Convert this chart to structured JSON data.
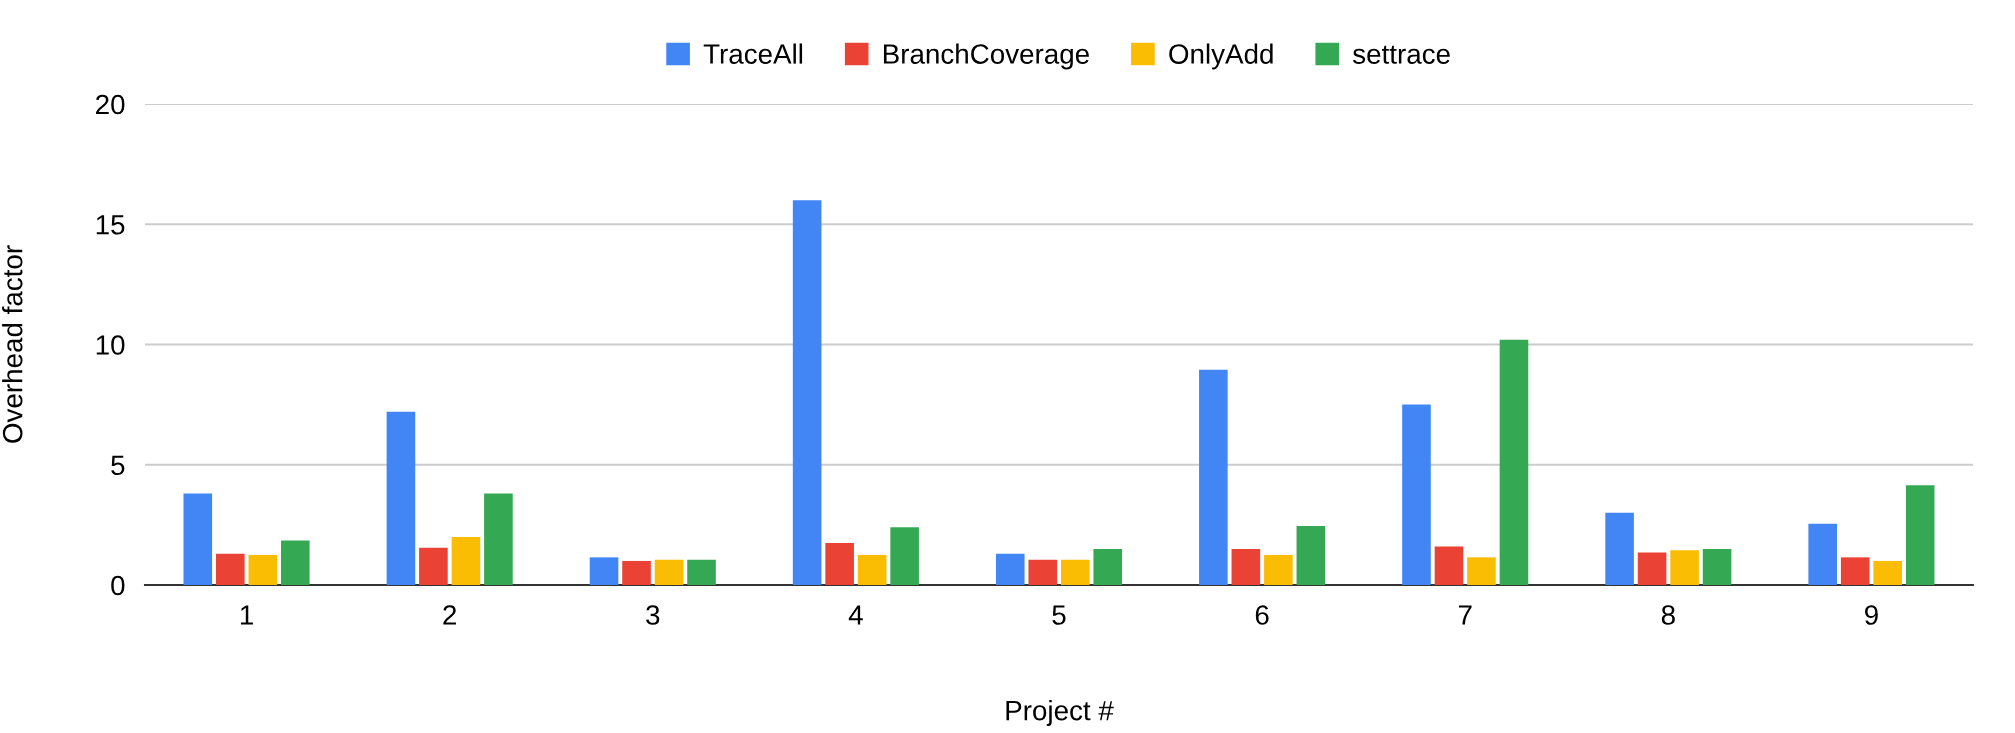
{
  "chart_data": {
    "type": "bar",
    "xlabel": "Project #",
    "ylabel": "Overhead factor",
    "categories": [
      "1",
      "2",
      "3",
      "4",
      "5",
      "6",
      "7",
      "8",
      "9"
    ],
    "series": [
      {
        "name": "TraceAll",
        "color": "#4285f4",
        "values": [
          3.8,
          7.2,
          1.15,
          16.0,
          1.3,
          8.95,
          7.5,
          3.0,
          2.55
        ]
      },
      {
        "name": "BranchCoverage",
        "color": "#ea4335",
        "values": [
          1.3,
          1.55,
          1.0,
          1.75,
          1.05,
          1.5,
          1.6,
          1.35,
          1.15
        ]
      },
      {
        "name": "OnlyAdd",
        "color": "#fbbc04",
        "values": [
          1.25,
          2.0,
          1.05,
          1.25,
          1.05,
          1.25,
          1.15,
          1.45,
          1.0
        ]
      },
      {
        "name": "settrace",
        "color": "#34a853",
        "values": [
          1.85,
          3.8,
          1.05,
          2.4,
          1.5,
          2.45,
          10.2,
          1.5,
          4.15
        ]
      }
    ],
    "ylim": [
      0,
      20
    ],
    "yticks": [
      0,
      5,
      10,
      15,
      20
    ],
    "grid": "y",
    "legend": "top"
  }
}
